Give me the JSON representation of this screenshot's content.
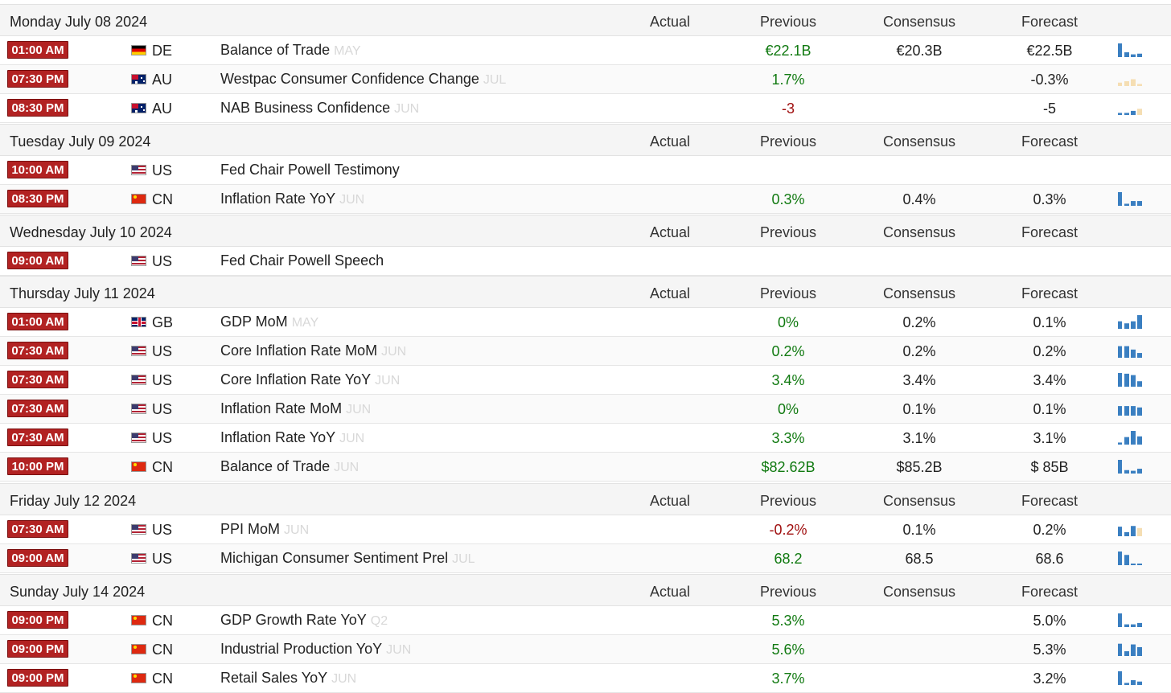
{
  "columns": {
    "actual": "Actual",
    "previous": "Previous",
    "consensus": "Consensus",
    "forecast": "Forecast"
  },
  "colors": {
    "time_badge": "#b22222",
    "up": "#117a11",
    "down": "#a01010",
    "spark_blue": "#3a7fc1",
    "spark_tan": "#f5deb3"
  },
  "days": [
    {
      "date": "Monday July 08 2024",
      "events": [
        {
          "time": "01:00 AM",
          "country": "DE",
          "flag": "de-flag-icon",
          "event": "Balance of Trade",
          "ref": "MAY",
          "actual": "",
          "previous": "€22.1B",
          "previous_dir": "up",
          "consensus": "€20.3B",
          "forecast": "€22.5B",
          "spark": "blue",
          "spark_levels": [
            1.0,
            0.35,
            0.2,
            0.25
          ]
        },
        {
          "time": "07:30 PM",
          "country": "AU",
          "flag": "au-flag-icon",
          "event": "Westpac Consumer Confidence Change",
          "ref": "JUL",
          "actual": "",
          "previous": "1.7%",
          "previous_dir": "up",
          "consensus": "",
          "forecast": "-0.3%",
          "spark": "tan",
          "spark_levels": [
            0.25,
            0.35,
            0.5,
            0.15
          ]
        },
        {
          "time": "08:30 PM",
          "country": "AU",
          "flag": "au-flag-icon",
          "event": "NAB Business Confidence",
          "ref": "JUN",
          "actual": "",
          "previous": "-3",
          "previous_dir": "down",
          "consensus": "",
          "forecast": "-5",
          "spark": "mixed",
          "spark_levels": [
            0.15,
            0.15,
            0.3,
            0.45
          ]
        }
      ]
    },
    {
      "date": "Tuesday July 09 2024",
      "events": [
        {
          "time": "10:00 AM",
          "country": "US",
          "flag": "us-flag-icon",
          "event": "Fed Chair Powell Testimony",
          "ref": "",
          "actual": "",
          "previous": "",
          "previous_dir": "",
          "consensus": "",
          "forecast": "",
          "spark": "",
          "spark_levels": []
        },
        {
          "time": "08:30 PM",
          "country": "CN",
          "flag": "cn-flag-icon",
          "event": "Inflation Rate YoY",
          "ref": "JUN",
          "actual": "",
          "previous": "0.3%",
          "previous_dir": "up",
          "consensus": "0.4%",
          "forecast": "0.3%",
          "spark": "blue",
          "spark_levels": [
            1.0,
            0.15,
            0.35,
            0.35
          ]
        }
      ]
    },
    {
      "date": "Wednesday July 10 2024",
      "events": [
        {
          "time": "09:00 AM",
          "country": "US",
          "flag": "us-flag-icon",
          "event": "Fed Chair Powell Speech",
          "ref": "",
          "actual": "",
          "previous": "",
          "previous_dir": "",
          "consensus": "",
          "forecast": "",
          "spark": "",
          "spark_levels": []
        }
      ]
    },
    {
      "date": "Thursday July 11 2024",
      "events": [
        {
          "time": "01:00 AM",
          "country": "GB",
          "flag": "gb-flag-icon",
          "event": "GDP MoM",
          "ref": "MAY",
          "actual": "",
          "previous": "0%",
          "previous_dir": "up",
          "consensus": "0.2%",
          "forecast": "0.1%",
          "spark": "blue",
          "spark_levels": [
            0.55,
            0.4,
            0.55,
            1.0
          ]
        },
        {
          "time": "07:30 AM",
          "country": "US",
          "flag": "us-flag-icon",
          "event": "Core Inflation Rate MoM",
          "ref": "JUN",
          "actual": "",
          "previous": "0.2%",
          "previous_dir": "up",
          "consensus": "0.2%",
          "forecast": "0.2%",
          "spark": "blue",
          "spark_levels": [
            0.85,
            0.85,
            0.6,
            0.35
          ]
        },
        {
          "time": "07:30 AM",
          "country": "US",
          "flag": "us-flag-icon",
          "event": "Core Inflation Rate YoY",
          "ref": "JUN",
          "actual": "",
          "previous": "3.4%",
          "previous_dir": "up",
          "consensus": "3.4%",
          "forecast": "3.4%",
          "spark": "blue",
          "spark_levels": [
            1.0,
            0.95,
            0.85,
            0.4
          ]
        },
        {
          "time": "07:30 AM",
          "country": "US",
          "flag": "us-flag-icon",
          "event": "Inflation Rate MoM",
          "ref": "JUN",
          "actual": "",
          "previous": "0%",
          "previous_dir": "up",
          "consensus": "0.1%",
          "forecast": "0.1%",
          "spark": "blue",
          "spark_levels": [
            0.7,
            0.7,
            0.7,
            0.6
          ]
        },
        {
          "time": "07:30 AM",
          "country": "US",
          "flag": "us-flag-icon",
          "event": "Inflation Rate YoY",
          "ref": "JUN",
          "actual": "",
          "previous": "3.3%",
          "previous_dir": "up",
          "consensus": "3.1%",
          "forecast": "3.1%",
          "spark": "blue",
          "spark_levels": [
            0.15,
            0.55,
            1.0,
            0.6
          ]
        },
        {
          "time": "10:00 PM",
          "country": "CN",
          "flag": "cn-flag-icon",
          "event": "Balance of Trade",
          "ref": "JUN",
          "actual": "",
          "previous": "$82.62B",
          "previous_dir": "up",
          "consensus": "$85.2B",
          "forecast": "$ 85B",
          "spark": "blue",
          "spark_levels": [
            1.0,
            0.25,
            0.2,
            0.35
          ]
        }
      ]
    },
    {
      "date": "Friday July 12 2024",
      "events": [
        {
          "time": "07:30 AM",
          "country": "US",
          "flag": "us-flag-icon",
          "event": "PPI MoM",
          "ref": "JUN",
          "actual": "",
          "previous": "-0.2%",
          "previous_dir": "down",
          "consensus": "0.1%",
          "forecast": "0.2%",
          "spark": "mixed",
          "spark_levels": [
            0.7,
            0.3,
            0.75,
            0.6
          ]
        },
        {
          "time": "09:00 AM",
          "country": "US",
          "flag": "us-flag-icon",
          "event": "Michigan Consumer Sentiment Prel",
          "ref": "JUL",
          "actual": "",
          "previous": "68.2",
          "previous_dir": "up",
          "consensus": "68.5",
          "forecast": "68.6",
          "spark": "blue",
          "spark_levels": [
            1.0,
            0.75,
            0.1,
            0.1
          ]
        }
      ]
    },
    {
      "date": "Sunday July 14 2024",
      "events": [
        {
          "time": "09:00 PM",
          "country": "CN",
          "flag": "cn-flag-icon",
          "event": "GDP Growth Rate YoY",
          "ref": "Q2",
          "actual": "",
          "previous": "5.3%",
          "previous_dir": "up",
          "consensus": "",
          "forecast": "5.0%",
          "spark": "blue",
          "spark_levels": [
            1.0,
            0.2,
            0.2,
            0.3
          ]
        },
        {
          "time": "09:00 PM",
          "country": "CN",
          "flag": "cn-flag-icon",
          "event": "Industrial Production YoY",
          "ref": "JUN",
          "actual": "",
          "previous": "5.6%",
          "previous_dir": "up",
          "consensus": "",
          "forecast": "5.3%",
          "spark": "blue",
          "spark_levels": [
            0.9,
            0.35,
            0.85,
            0.65
          ]
        },
        {
          "time": "09:00 PM",
          "country": "CN",
          "flag": "cn-flag-icon",
          "event": "Retail Sales YoY",
          "ref": "JUN",
          "actual": "",
          "previous": "3.7%",
          "previous_dir": "up",
          "consensus": "",
          "forecast": "3.2%",
          "spark": "blue",
          "spark_levels": [
            1.0,
            0.15,
            0.35,
            0.25
          ]
        }
      ]
    }
  ]
}
